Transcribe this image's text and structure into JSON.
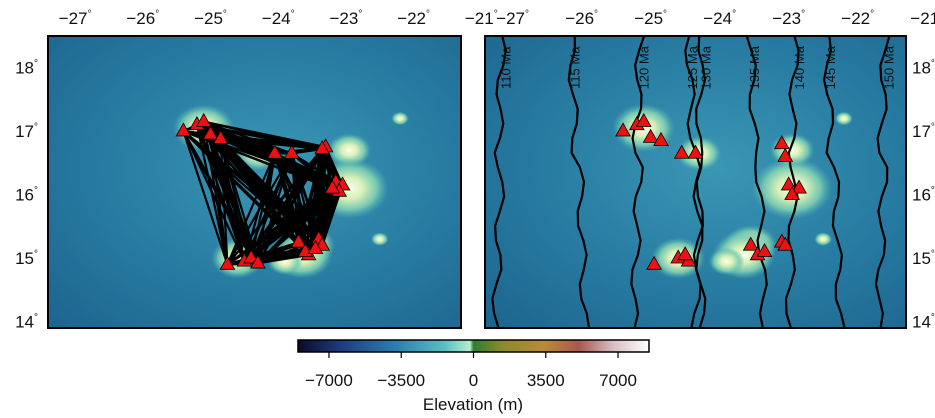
{
  "map": {
    "lon_ticks": [
      "−27",
      "−26",
      "−25",
      "−24",
      "−23",
      "−22",
      "−21"
    ],
    "lon_values": [
      -27,
      -26,
      -25,
      -24,
      -23,
      -22,
      -21
    ],
    "lat_ticks": [
      "18",
      "17",
      "16",
      "15",
      "14"
    ],
    "lat_values": [
      18,
      17,
      16,
      15,
      14
    ],
    "degree_symbol": "°",
    "lon_range": [
      -27.4,
      -21.3
    ],
    "lat_range": [
      13.9,
      18.5
    ]
  },
  "volcanoes": [
    [
      -25.4,
      17.0
    ],
    [
      -25.2,
      17.1
    ],
    [
      -25.0,
      16.95
    ],
    [
      -24.85,
      16.88
    ],
    [
      -25.1,
      17.15
    ],
    [
      -24.05,
      16.65
    ],
    [
      -23.8,
      16.65
    ],
    [
      -23.3,
      16.75
    ],
    [
      -23.35,
      16.72
    ],
    [
      -23.15,
      16.2
    ],
    [
      -23.05,
      16.15
    ],
    [
      -23.1,
      16.05
    ],
    [
      -23.2,
      16.1
    ],
    [
      -23.7,
      15.25
    ],
    [
      -23.55,
      15.05
    ],
    [
      -23.4,
      15.3
    ],
    [
      -23.35,
      15.2
    ],
    [
      -24.75,
      14.9
    ],
    [
      -24.5,
      14.95
    ],
    [
      -24.4,
      15.0
    ],
    [
      -24.3,
      14.92
    ],
    [
      -23.6,
      15.1
    ],
    [
      -23.45,
      15.15
    ]
  ],
  "right_volcanoes": [
    [
      -25.4,
      17.0
    ],
    [
      -25.2,
      17.1
    ],
    [
      -25.0,
      16.9
    ],
    [
      -24.85,
      16.85
    ],
    [
      -25.1,
      17.15
    ],
    [
      -24.55,
      16.65
    ],
    [
      -24.35,
      16.65
    ],
    [
      -23.1,
      16.8
    ],
    [
      -23.05,
      16.6
    ],
    [
      -23.0,
      16.15
    ],
    [
      -22.85,
      16.1
    ],
    [
      -22.95,
      16.0
    ],
    [
      -23.55,
      15.2
    ],
    [
      -23.45,
      15.05
    ],
    [
      -23.35,
      15.1
    ],
    [
      -23.1,
      15.25
    ],
    [
      -23.05,
      15.2
    ],
    [
      -24.95,
      14.9
    ],
    [
      -24.6,
      15.0
    ],
    [
      -24.45,
      14.95
    ],
    [
      -24.5,
      15.05
    ]
  ],
  "isochrons": [
    "110 Ma",
    "115 Ma",
    "120 Ma",
    "125 Ma",
    "130 Ma",
    "135 Ma",
    "140 Ma",
    "145 Ma",
    "150 Ma"
  ],
  "colorbar": {
    "ticks": [
      "−7000",
      "−3500",
      "0",
      "3500",
      "7000"
    ],
    "tick_values": [
      -7000,
      -3500,
      0,
      3500,
      7000
    ],
    "range": [
      -8500,
      8500
    ],
    "label": "Elevation (m)"
  },
  "colors": {
    "ocean_deep": "#1b5a86",
    "ocean_mid": "#2a86a8",
    "shelf": "#7fd0b4",
    "land": "#e8f5c8",
    "triangle": "#ee1111",
    "line": "#000000"
  }
}
